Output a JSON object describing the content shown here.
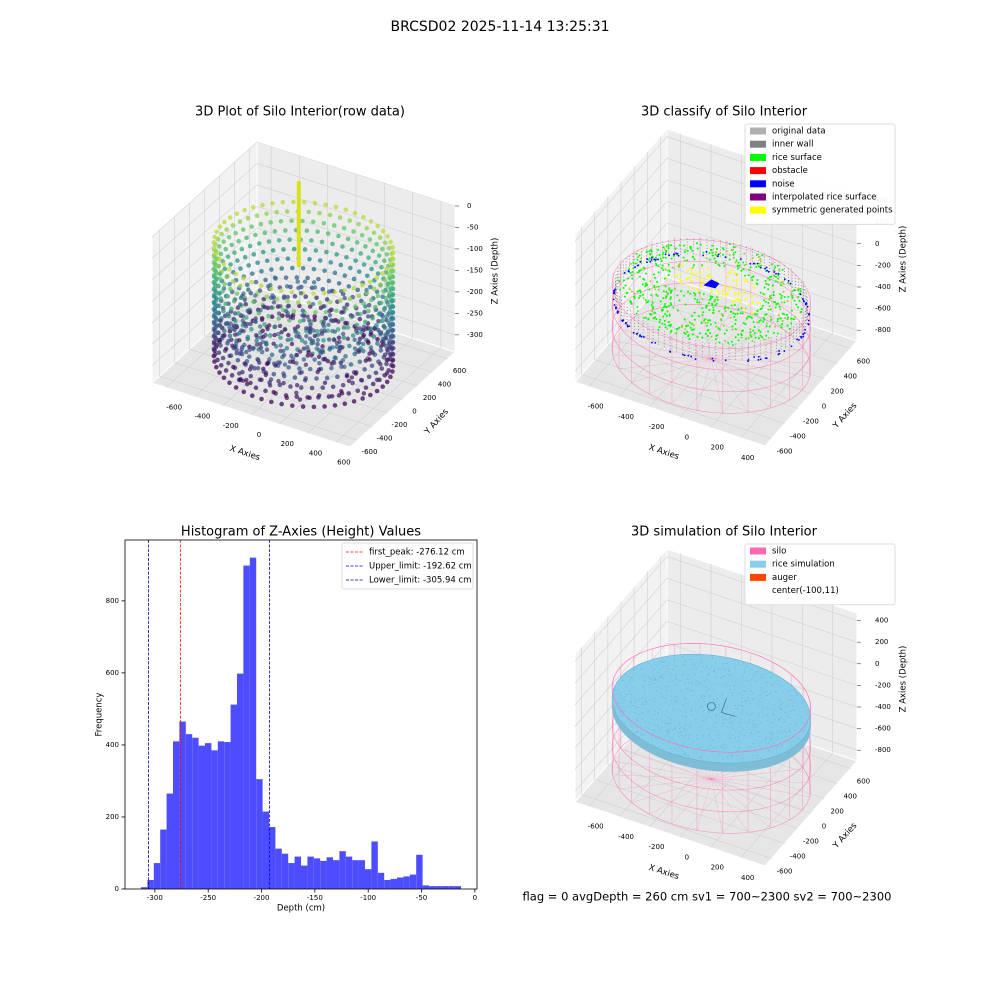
{
  "title": "BRCSD02 2025-11-14 13:25:31",
  "chart_data": [
    {
      "type": "scatter3d",
      "title": "3D Plot of Silo Interior(row data)",
      "xlabel": "X Axies",
      "ylabel": "Y Axies",
      "zlabel": "Z Axies (Depth)",
      "xlim": [
        -700,
        700
      ],
      "ylim": [
        -700,
        700
      ],
      "zlim": [
        -340,
        0
      ],
      "xticks": [
        -600,
        -400,
        -200,
        0,
        200,
        400,
        600
      ],
      "yticks": [
        -600,
        -400,
        -200,
        0,
        200,
        400,
        600
      ],
      "zticks": [
        0,
        -50,
        -100,
        -150,
        -200,
        -250,
        -300
      ]
    },
    {
      "type": "scatter3d",
      "title": "3D classify of Silo Interior",
      "xlabel": "X Axies",
      "ylabel": "Y Axies",
      "zlabel": "Z Axies (Depth)",
      "xlim": [
        -690,
        560
      ],
      "ylim": [
        -700,
        700
      ],
      "zlim": [
        -900,
        470
      ],
      "xticks": [
        -600,
        -400,
        -200,
        0,
        200,
        400
      ],
      "yticks": [
        -600,
        -400,
        -200,
        0,
        200,
        400,
        600
      ],
      "zticks": [
        400,
        200,
        0,
        -200,
        -400,
        -600,
        -800
      ],
      "legend_loc": "upper right",
      "legend": [
        {
          "name": "original data",
          "color": "#b0b0b0"
        },
        {
          "name": "inner wall",
          "color": "#808080"
        },
        {
          "name": "rice surface",
          "color": "#00ff00"
        },
        {
          "name": "obstacle",
          "color": "#ff0000"
        },
        {
          "name": "noise",
          "color": "#0000ff"
        },
        {
          "name": "interpolated rice surface",
          "color": "#800080"
        },
        {
          "name": "symmetric generated points",
          "color": "#ffff00"
        }
      ]
    },
    {
      "type": "histogram",
      "title": "Histogram of Z-Axies (Height) Values",
      "xlabel": "Depth (cm)",
      "ylabel": "Frequency",
      "color": "#4d4dff",
      "bins": [
        -313,
        -307,
        -301,
        -295,
        -289,
        -283,
        -277,
        -271,
        -265,
        -259,
        -253,
        -247,
        -241,
        -235,
        -229,
        -223,
        -217,
        -211,
        -205,
        -199,
        -193,
        -187,
        -181,
        -175,
        -169,
        -163,
        -157,
        -151,
        -145,
        -139,
        -133,
        -127,
        -121,
        -115,
        -109,
        -103,
        -97,
        -91,
        -85,
        -79,
        -73,
        -67,
        -61,
        -55,
        -49,
        -43,
        -37,
        -31,
        -25,
        -19,
        -13
      ],
      "values": [
        5,
        25,
        72,
        165,
        265,
        410,
        465,
        430,
        420,
        398,
        405,
        385,
        410,
        408,
        512,
        598,
        898,
        920,
        305,
        215,
        172,
        112,
        98,
        72,
        90,
        65,
        90,
        85,
        78,
        88,
        80,
        105,
        90,
        80,
        80,
        55,
        132,
        45,
        25,
        28,
        32,
        35,
        40,
        95,
        10,
        8,
        8,
        8,
        8,
        8
      ],
      "xlim": [
        -328,
        2
      ],
      "ylim": [
        0,
        969
      ],
      "xticks": [
        -300,
        -250,
        -200,
        -150,
        -100,
        -50,
        0
      ],
      "yticks": [
        0,
        200,
        400,
        600,
        800
      ],
      "legend_loc": "upper right",
      "lines": [
        {
          "name": "first_peak: -276.12 cm",
          "value": -276.12,
          "color": "#ff0000"
        },
        {
          "name": "Upper_limit: -192.62 cm",
          "value": -192.62,
          "color": "#0000ff"
        },
        {
          "name": "Lower_limit: -305.94 cm",
          "value": -305.94,
          "color": "#00008b"
        }
      ]
    },
    {
      "type": "surface3d",
      "title": "3D simulation of Silo Interior",
      "xlabel": "X Axies",
      "ylabel": "Y Axies",
      "zlabel": "Z Axies (Depth)",
      "xlim": [
        -690,
        560
      ],
      "ylim": [
        -700,
        700
      ],
      "zlim": [
        -900,
        470
      ],
      "xticks": [
        -600,
        -400,
        -200,
        0,
        200,
        400
      ],
      "yticks": [
        -600,
        -400,
        -200,
        0,
        200,
        400,
        600
      ],
      "zticks": [
        400,
        200,
        0,
        -200,
        -400,
        -600,
        -800
      ],
      "legend_loc": "upper right",
      "legend": [
        {
          "name": "silo",
          "color": "#ff69b4"
        },
        {
          "name": "rice simulation",
          "color": "#87ceeb"
        },
        {
          "name": "auger",
          "color": "#ff4500"
        },
        {
          "name": "center(-100,11)"
        }
      ]
    }
  ],
  "footer": "flag = 0     avgDepth = 260 cm  sv1 = 700~2300  sv2 = 700~2300"
}
